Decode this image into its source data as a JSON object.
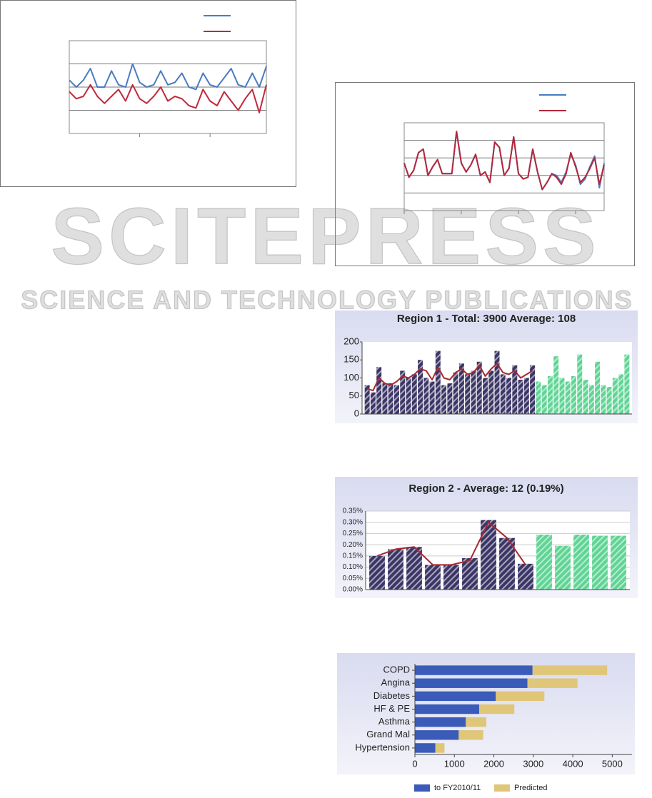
{
  "watermark": {
    "title": "SCITEPRESS",
    "subtitle": "SCIENCE AND TECHNOLOGY PUBLICATIONS"
  },
  "chart_data": [
    {
      "type": "line",
      "legend": "top-right",
      "grid": true,
      "xlim": [
        0,
        28
      ],
      "xticks": [
        10,
        20
      ],
      "ylim": [
        0,
        4
      ],
      "yticks": [
        1,
        2,
        3
      ],
      "series": [
        {
          "color": "#4a7bc4",
          "values": [
            2.3,
            2.0,
            2.3,
            2.8,
            2.0,
            2.0,
            2.7,
            2.1,
            2.0,
            3.0,
            2.2,
            2.0,
            2.1,
            2.7,
            2.1,
            2.2,
            2.6,
            2.0,
            1.9,
            2.6,
            2.1,
            2.0,
            2.4,
            2.8,
            2.1,
            2.0,
            2.6,
            2.0,
            2.9
          ]
        },
        {
          "color": "#c0283c",
          "values": [
            1.8,
            1.5,
            1.6,
            2.1,
            1.6,
            1.3,
            1.6,
            1.9,
            1.4,
            2.1,
            1.5,
            1.3,
            1.6,
            2.0,
            1.4,
            1.6,
            1.5,
            1.2,
            1.1,
            1.9,
            1.4,
            1.2,
            1.8,
            1.4,
            1.0,
            1.5,
            1.9,
            0.9,
            2.1
          ]
        }
      ]
    },
    {
      "type": "line",
      "legend": "top-right",
      "grid": true,
      "xlim": [
        0,
        42
      ],
      "xticks": [
        0,
        12,
        24,
        36
      ],
      "ylim": [
        0,
        5
      ],
      "yticks": [
        1,
        2,
        3,
        4
      ],
      "series": [
        {
          "color": "#4a7bc4",
          "values": [
            2.7,
            1.9,
            2.3,
            3.3,
            3.5,
            2.0,
            2.5,
            2.9,
            2.1,
            2.1,
            2.1,
            4.5,
            2.7,
            2.2,
            2.6,
            3.2,
            2.0,
            2.2,
            1.6,
            3.9,
            3.6,
            2.0,
            2.4,
            4.2,
            2.1,
            1.8,
            1.9,
            3.5,
            2.2,
            1.2,
            1.6,
            2.1,
            2.0,
            1.6,
            2.2,
            3.2,
            2.6,
            1.5,
            1.8,
            2.5,
            3.1,
            1.3,
            2.7
          ]
        },
        {
          "color": "#b3283c",
          "values": [
            2.7,
            1.9,
            2.3,
            3.3,
            3.5,
            2.0,
            2.5,
            2.9,
            2.1,
            2.1,
            2.1,
            4.5,
            2.7,
            2.2,
            2.6,
            3.2,
            2.0,
            2.2,
            1.6,
            3.9,
            3.6,
            2.0,
            2.4,
            4.2,
            2.1,
            1.8,
            1.9,
            3.5,
            2.2,
            1.2,
            1.6,
            2.1,
            1.9,
            1.5,
            2.1,
            3.3,
            2.5,
            1.6,
            1.9,
            2.4,
            3.0,
            1.5,
            2.6
          ]
        }
      ]
    },
    {
      "type": "bar",
      "title": "Region 1 - Total: 3900  Average: 108",
      "grid": false,
      "ylim": [
        0,
        200
      ],
      "yticks": [
        0,
        50,
        100,
        150,
        200
      ],
      "series": [
        {
          "color": "#3b3566",
          "values": [
            80,
            60,
            130,
            85,
            85,
            80,
            120,
            100,
            110,
            150,
            100,
            90,
            175,
            80,
            85,
            115,
            140,
            110,
            120,
            145,
            100,
            120,
            175,
            110,
            100,
            135,
            95,
            100,
            135,
            null,
            null,
            null,
            null,
            null,
            null,
            null,
            null,
            null,
            null,
            null,
            null,
            null,
            null,
            null,
            null
          ]
        },
        {
          "color": "#5fd494",
          "values": [
            null,
            null,
            null,
            null,
            null,
            null,
            null,
            null,
            null,
            null,
            null,
            null,
            null,
            null,
            null,
            null,
            null,
            null,
            null,
            null,
            null,
            null,
            null,
            null,
            null,
            null,
            null,
            null,
            null,
            90,
            80,
            105,
            160,
            100,
            90,
            105,
            165,
            95,
            80,
            145,
            80,
            75,
            100,
            110,
            165
          ]
        },
        {
          "color": "#a82830",
          "type": "line",
          "values": [
            70,
            65,
            100,
            85,
            80,
            90,
            105,
            100,
            110,
            125,
            120,
            95,
            130,
            100,
            95,
            115,
            125,
            110,
            115,
            135,
            105,
            125,
            140,
            115,
            110,
            120,
            100,
            110,
            120,
            null,
            null,
            null,
            null,
            null,
            null,
            null,
            null,
            null,
            null,
            null,
            null,
            null,
            null,
            null,
            null
          ]
        }
      ]
    },
    {
      "type": "bar",
      "title": "Region 2 - Average: 12 (0.19%)",
      "grid": true,
      "ylim": [
        0,
        0.35
      ],
      "yticks": [
        {
          "value": 0,
          "label": "0.00%"
        },
        {
          "value": 0.05,
          "label": "0.05%"
        },
        {
          "value": 0.1,
          "label": "0.10%"
        },
        {
          "value": 0.15,
          "label": "0.15%"
        },
        {
          "value": 0.2,
          "label": "0.20%"
        },
        {
          "value": 0.25,
          "label": "0.25%"
        },
        {
          "value": 0.3,
          "label": "0.30%"
        },
        {
          "value": 0.35,
          "label": "0.35%"
        }
      ],
      "series": [
        {
          "color": "#3b3566",
          "values": [
            0.15,
            0.18,
            0.19,
            0.11,
            0.11,
            0.14,
            0.31,
            0.23,
            0.115,
            null,
            null,
            null,
            null,
            null
          ]
        },
        {
          "color": "#5fd494",
          "values": [
            null,
            null,
            null,
            null,
            null,
            null,
            null,
            null,
            null,
            0.245,
            0.195,
            0.245,
            0.24,
            0.24
          ]
        },
        {
          "color": "#a82830",
          "type": "line",
          "values": [
            0.15,
            0.18,
            0.19,
            0.11,
            0.11,
            0.13,
            0.3,
            0.23,
            0.11,
            null,
            null,
            null,
            null,
            null
          ]
        }
      ]
    },
    {
      "type": "hbar",
      "stacked": true,
      "legend": "bottom",
      "categories": [
        "COPD",
        "Angina",
        "Diabetes",
        "HF & PE",
        "Asthma",
        "Grand Mal",
        "Hypertension"
      ],
      "xlim": [
        0,
        5500
      ],
      "xticks": [
        0,
        1000,
        2000,
        3000,
        4000,
        5000
      ],
      "series": [
        {
          "name": "to FY2010/11",
          "color": "#3a5bb8",
          "values": [
            2980,
            2850,
            2050,
            1630,
            1290,
            1110,
            520
          ]
        },
        {
          "name": "Predicted",
          "color": "#e0c678",
          "values": [
            1890,
            1270,
            1230,
            890,
            520,
            620,
            230
          ]
        }
      ]
    }
  ]
}
